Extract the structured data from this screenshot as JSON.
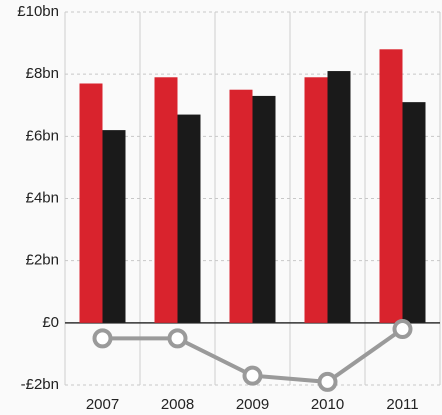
{
  "chart_data": {
    "type": "bar",
    "categories": [
      "2007",
      "2008",
      "2009",
      "2010",
      "2011"
    ],
    "series": [
      {
        "color": "#d9232d",
        "values": [
          7.7,
          7.9,
          7.5,
          7.9,
          8.8
        ]
      },
      {
        "color": "#1a1a1a",
        "values": [
          6.2,
          6.7,
          7.3,
          8.1,
          7.1
        ]
      },
      {
        "type": "line",
        "color": "#9a9a9a",
        "values": [
          -0.5,
          -0.5,
          -1.7,
          -1.9,
          -0.2
        ]
      }
    ],
    "ylim": [
      -2,
      10
    ],
    "yticks": [
      {
        "value": -2,
        "label": "-£2bn"
      },
      {
        "value": 0,
        "label": "£0"
      },
      {
        "value": 2,
        "label": "£2bn"
      },
      {
        "value": 4,
        "label": "£4bn"
      },
      {
        "value": 6,
        "label": "£6bn"
      },
      {
        "value": 8,
        "label": "£8bn"
      },
      {
        "value": 10,
        "label": "£10bn"
      }
    ],
    "grid": true
  }
}
